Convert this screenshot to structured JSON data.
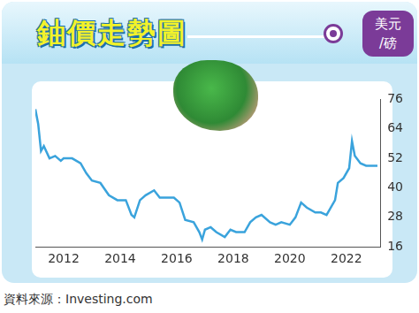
{
  "chart_data": {
    "type": "line",
    "title": "鈾價走勢圖",
    "ylabel": "美元/磅",
    "source": "資料來源：Investing.com",
    "x": [
      2011.0,
      2011.1,
      2011.2,
      2011.3,
      2011.5,
      2011.7,
      2011.9,
      2012.0,
      2012.3,
      2012.6,
      2012.8,
      2013.0,
      2013.3,
      2013.6,
      2013.9,
      2014.2,
      2014.4,
      2014.5,
      2014.7,
      2014.9,
      2015.2,
      2015.4,
      2015.6,
      2015.9,
      2016.1,
      2016.3,
      2016.6,
      2016.8,
      2016.9,
      2017.0,
      2017.2,
      2017.4,
      2017.7,
      2017.9,
      2018.1,
      2018.4,
      2018.6,
      2018.8,
      2019.0,
      2019.3,
      2019.5,
      2019.7,
      2020.0,
      2020.2,
      2020.4,
      2020.6,
      2020.9,
      2021.1,
      2021.3,
      2021.6,
      2021.7,
      2021.9,
      2022.1,
      2022.2,
      2022.3,
      2022.5,
      2022.7,
      2023.1
    ],
    "values": [
      72,
      66,
      55,
      57,
      52,
      53,
      51,
      52,
      52,
      50,
      46,
      43,
      42,
      37,
      35,
      35,
      29,
      28,
      35,
      37,
      39,
      36,
      36,
      36,
      34,
      27,
      26,
      22,
      19,
      23,
      24,
      22,
      20,
      23,
      22,
      22,
      26,
      28,
      29,
      26,
      25,
      26,
      25,
      28,
      34,
      32,
      30,
      30,
      29,
      35,
      42,
      44,
      48,
      59,
      53,
      50,
      49,
      49
    ],
    "color": "#3aa3dc",
    "xlim": [
      2011.0,
      2023.2
    ],
    "xticks": [
      2012,
      2014,
      2016,
      2018,
      2020,
      2022
    ],
    "ylim": [
      16,
      76
    ],
    "yticks": [
      16,
      28,
      40,
      52,
      64,
      76
    ],
    "grid": false
  }
}
